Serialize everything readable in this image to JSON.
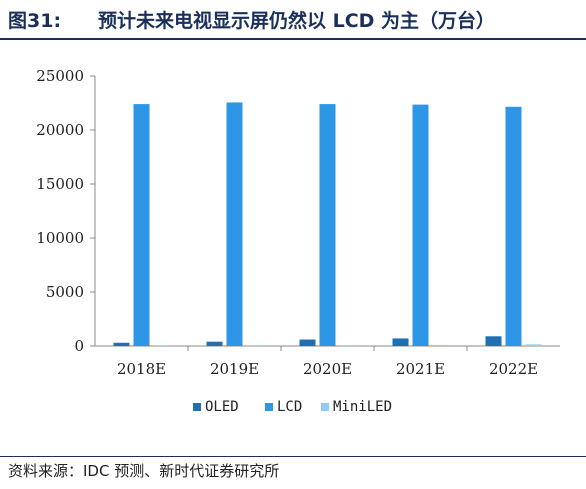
{
  "header": {
    "figure_number": "图31:",
    "title": "预计未来电视显示屏仍然以 LCD 为主（万台）"
  },
  "source": "资料来源：IDC 预测、新时代证券研究所",
  "chart_data": {
    "type": "bar",
    "title": "预计未来电视显示屏仍然以 LCD 为主（万台）",
    "xlabel": "",
    "ylabel": "",
    "categories": [
      "2018E",
      "2019E",
      "2020E",
      "2021E",
      "2022E"
    ],
    "ylim": [
      0,
      25000
    ],
    "yticks": [
      0,
      5000,
      10000,
      15000,
      20000,
      25000
    ],
    "grid": false,
    "legend_position": "bottom",
    "series": [
      {
        "name": "OLED",
        "color": "#1f6fb2",
        "values": [
          300,
          400,
          600,
          700,
          900
        ]
      },
      {
        "name": "LCD",
        "color": "#2e96e6",
        "values": [
          22400,
          22550,
          22400,
          22350,
          22150
        ]
      },
      {
        "name": "MiniLED",
        "color": "#8fcdf5",
        "values": [
          20,
          40,
          60,
          100,
          150
        ]
      }
    ]
  }
}
